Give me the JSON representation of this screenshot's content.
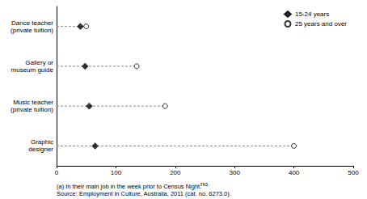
{
  "chart_data": {
    "type": "scatter",
    "orientation": "horizontal",
    "categories": [
      "Dance teacher\n(private tuition)",
      "Gallery or\nmuseum guide",
      "Music teacher\n(private tuition)",
      "Graphic\ndesigner"
    ],
    "series": [
      {
        "name": "15-24 years",
        "color": "#000000",
        "marker": "diamond",
        "values": [
          40,
          48,
          55,
          65
        ]
      },
      {
        "name": "25 years and over",
        "color": "#000000",
        "marker": "open_circle",
        "values": [
          50,
          135,
          183,
          400
        ]
      }
    ],
    "x_label": "no.",
    "xlim": [
      0,
      500
    ],
    "xticks": [
      0,
      100,
      200,
      300,
      400,
      500
    ],
    "grid": false,
    "legend": "upper right",
    "annotations": [
      "(a) In their main job in the week prior to Census Night.",
      "Source: Employment in Culture, Australia, 2011 (cat. no. 6273.0)."
    ]
  }
}
